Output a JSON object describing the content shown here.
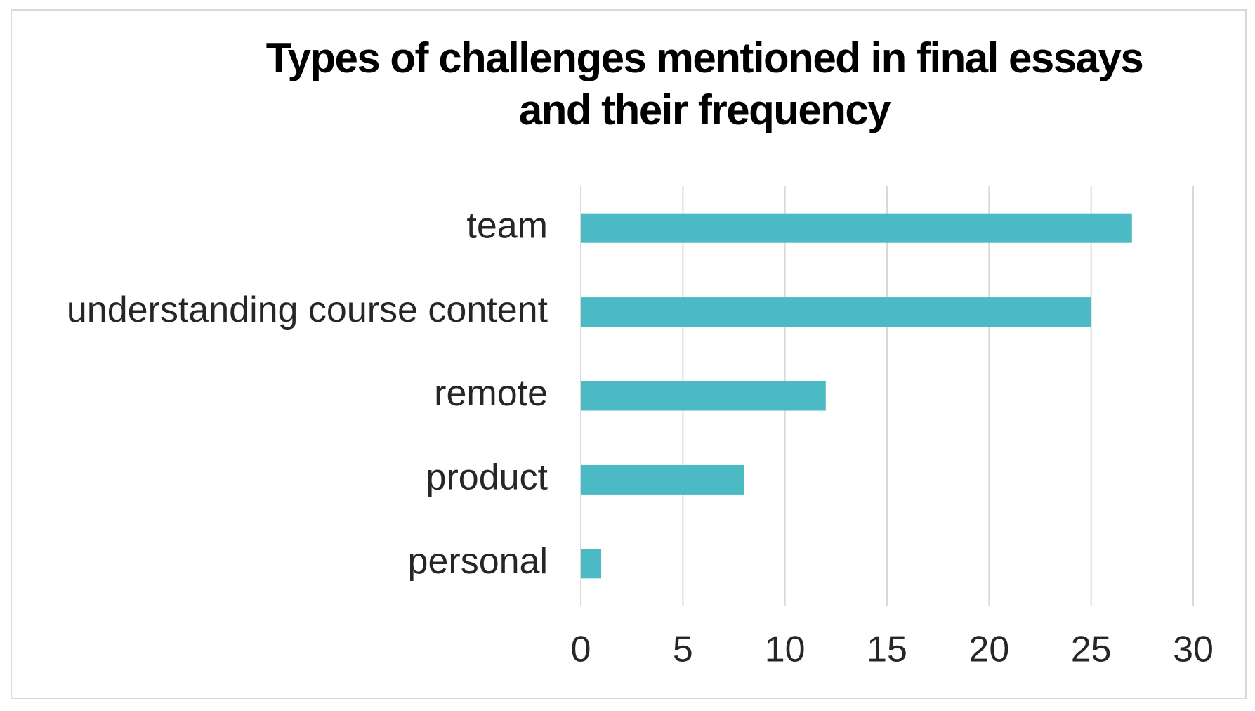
{
  "chart_data": {
    "type": "bar",
    "orientation": "horizontal",
    "title": "Types of challenges mentioned in final essays and their frequency",
    "categories": [
      "team",
      "understanding course content",
      "remote",
      "product",
      "personal"
    ],
    "values": [
      27,
      25,
      12,
      8,
      1
    ],
    "color": "#4bbac4",
    "xlim": [
      0,
      30
    ],
    "xticks": [
      0,
      5,
      10,
      15,
      20,
      25,
      30
    ],
    "grid": true
  }
}
